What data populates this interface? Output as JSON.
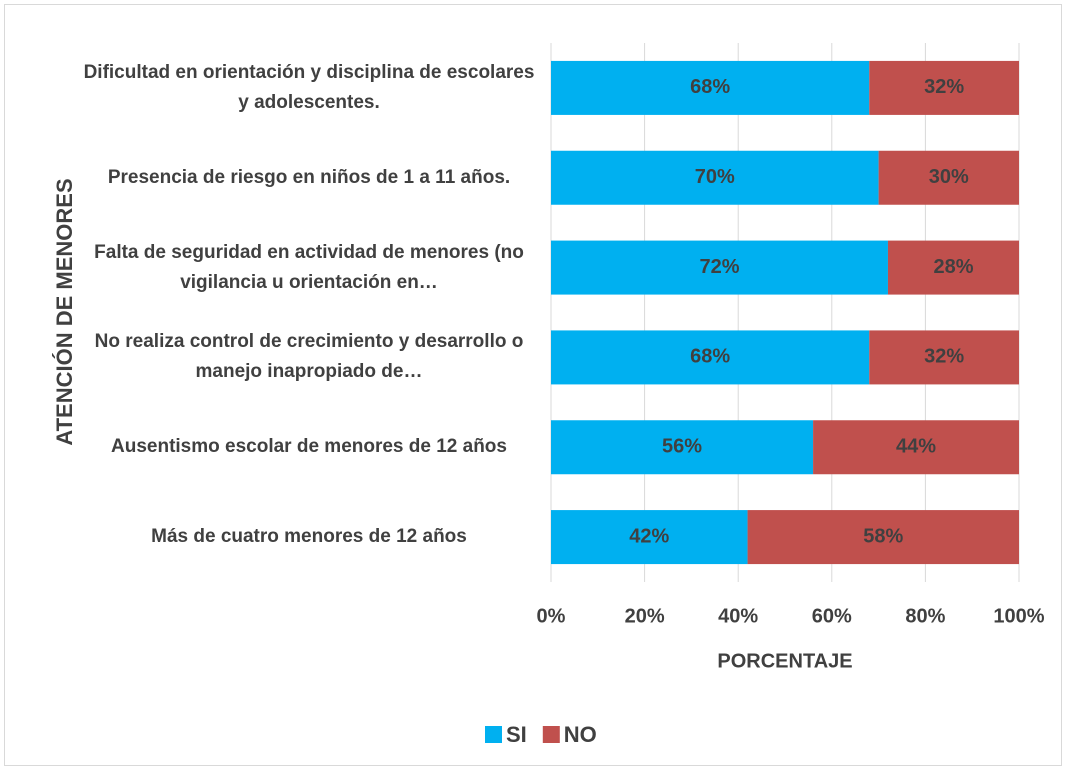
{
  "chart_data": {
    "type": "stacked-barh",
    "categories": [
      "Dificultad en orientación y disciplina de escolares y adolescentes.",
      "Presencia de riesgo en niños de 1 a  11 años.",
      "Falta de seguridad en actividad de menores (no vigilancia u orientación en…",
      "No realiza control de crecimiento y desarrollo o manejo inapropiado de…",
      "Ausentismo escolar de menores de 12 años",
      "Más de cuatro menores de 12 años"
    ],
    "series": [
      {
        "name": "SI",
        "color": "#00b0f0",
        "values": [
          68,
          70,
          72,
          68,
          56,
          42
        ],
        "value_labels": [
          "68%",
          "70%",
          "72%",
          "68%",
          "56%",
          "42%"
        ]
      },
      {
        "name": "NO",
        "color": "#c0504d",
        "values": [
          32,
          30,
          28,
          32,
          44,
          58
        ],
        "value_labels": [
          "32%",
          "30%",
          "28%",
          "32%",
          "44%",
          "58%"
        ]
      }
    ],
    "xlabel": "PORCENTAJE",
    "ylabel": "ATENCIÓN DE MENORES",
    "xlim": [
      0,
      100
    ],
    "xticks": [
      {
        "value": 0,
        "label": "0%"
      },
      {
        "value": 20,
        "label": "20%"
      },
      {
        "value": 40,
        "label": "40%"
      },
      {
        "value": 60,
        "label": "60%"
      },
      {
        "value": 80,
        "label": "80%"
      },
      {
        "value": 100,
        "label": "100%"
      }
    ],
    "grid": true,
    "legend": "bottom"
  }
}
